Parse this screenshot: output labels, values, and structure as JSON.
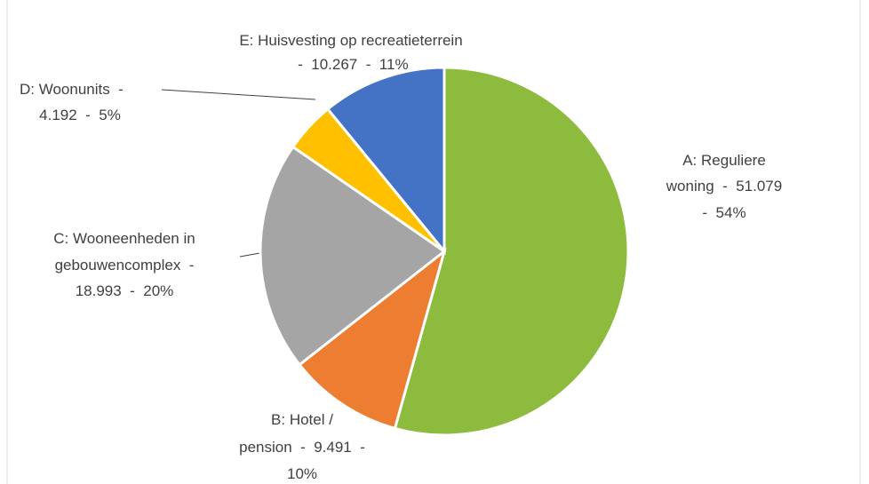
{
  "chart_data": {
    "type": "pie",
    "labels": [
      [
        "A: Reguliere",
        "woning  -  51.079",
        "-  54%"
      ],
      [
        "B: Hotel /",
        "pension  -  9.491  -",
        "10%"
      ],
      [
        "C: Wooneenheden in",
        "gebouwencomplex  -",
        "18.993  -  20%"
      ],
      [
        "D: Woonunits  -",
        "4.192  -  5%"
      ],
      [
        "E: Huisvesting op recreatieterrein",
        " -  10.267  -  11%"
      ]
    ],
    "values": [
      51079,
      9491,
      18993,
      4192,
      10267
    ],
    "colors": [
      "#8dbb3d",
      "#ed7d31",
      "#a5a5a5",
      "#ffc000",
      "#4472c4"
    ]
  }
}
